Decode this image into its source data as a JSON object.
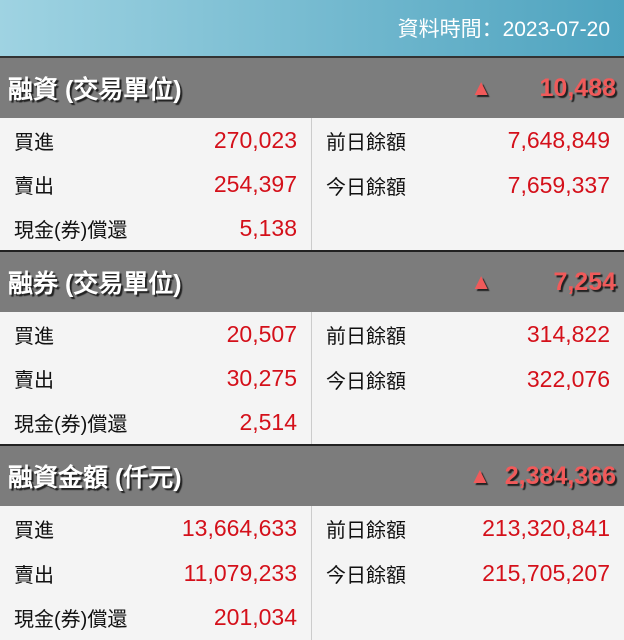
{
  "header": {
    "data_time": "資料時間：2023-07-20"
  },
  "colors": {
    "up": "#f05a5a",
    "value": "#d4101a"
  },
  "sections": [
    {
      "title": "融資 (交易單位)",
      "trend": "▲",
      "change": "10,488",
      "left": [
        {
          "label": "買進",
          "value": "270,023"
        },
        {
          "label": "賣出",
          "value": "254,397"
        },
        {
          "label": "現金(券)償還",
          "value": "5,138"
        }
      ],
      "right": [
        {
          "label": "前日餘額",
          "value": "7,648,849"
        },
        {
          "label": "今日餘額",
          "value": "7,659,337"
        }
      ]
    },
    {
      "title": "融券 (交易單位)",
      "trend": "▲",
      "change": "7,254",
      "left": [
        {
          "label": "買進",
          "value": "20,507"
        },
        {
          "label": "賣出",
          "value": "30,275"
        },
        {
          "label": "現金(券)償還",
          "value": "2,514"
        }
      ],
      "right": [
        {
          "label": "前日餘額",
          "value": "314,822"
        },
        {
          "label": "今日餘額",
          "value": "322,076"
        }
      ]
    },
    {
      "title": "融資金額 (仟元)",
      "trend": "▲",
      "change": "2,384,366",
      "left": [
        {
          "label": "買進",
          "value": "13,664,633"
        },
        {
          "label": "賣出",
          "value": "11,079,233"
        },
        {
          "label": "現金(券)償還",
          "value": "201,034"
        }
      ],
      "right": [
        {
          "label": "前日餘額",
          "value": "213,320,841"
        },
        {
          "label": "今日餘額",
          "value": "215,705,207"
        }
      ]
    }
  ]
}
